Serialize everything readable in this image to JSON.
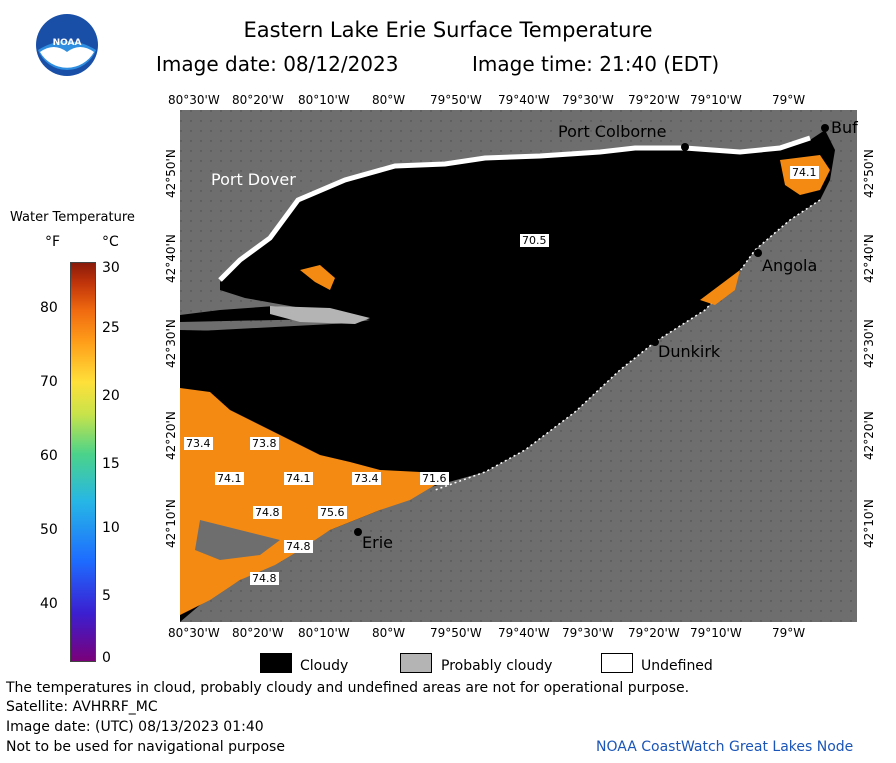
{
  "header": {
    "title": "Eastern Lake Erie Surface Temperature",
    "image_date": "Image date: 08/12/2023",
    "image_time": "Image time: 21:40 (EDT)"
  },
  "logo": {
    "text": "NOAA"
  },
  "colorbar": {
    "title": "Water Temperature",
    "unit_f": "°F",
    "unit_c": "°C",
    "f_ticks": [
      "80",
      "70",
      "60",
      "50",
      "40"
    ],
    "c_ticks": [
      "30",
      "25",
      "20",
      "15",
      "10",
      "5",
      "0"
    ]
  },
  "axes": {
    "lon_labels": [
      "80°30'W",
      "80°20'W",
      "80°10'W",
      "80°W",
      "79°50'W",
      "79°40'W",
      "79°30'W",
      "79°20'W",
      "79°10'W",
      "79°W"
    ],
    "lat_labels": [
      "42°50'N",
      "42°40'N",
      "42°30'N",
      "42°20'N",
      "42°10'N"
    ]
  },
  "places": [
    {
      "name": "Port Colborne"
    },
    {
      "name": "Port Dover"
    },
    {
      "name": "Angola"
    },
    {
      "name": "Dunkirk"
    },
    {
      "name": "Erie"
    },
    {
      "name": "Buf"
    }
  ],
  "temps": [
    "74.1",
    "70.5",
    "73.4",
    "73.8",
    "74.1",
    "74.1",
    "73.4",
    "71.6",
    "74.8",
    "75.6",
    "74.8",
    "74.8"
  ],
  "key": {
    "cloudy": "Cloudy",
    "probably_cloudy": "Probably cloudy",
    "undefined": "Undefined"
  },
  "footer": {
    "note": "The temperatures in cloud, probably cloudy and undefined areas are not for operational purpose.",
    "satellite": "Satellite: AVHRRF_MC",
    "utc_date": "Image date: (UTC) 08/13/2023  01:40",
    "nav": "Not to be used for navigational purpose",
    "credit": "NOAA CoastWatch Great Lakes Node"
  },
  "colors": {
    "land": "#6e6e6e",
    "cloud": "#000000",
    "water_warm": "#f58a12",
    "probably_cloudy": "#b4b4b4"
  }
}
